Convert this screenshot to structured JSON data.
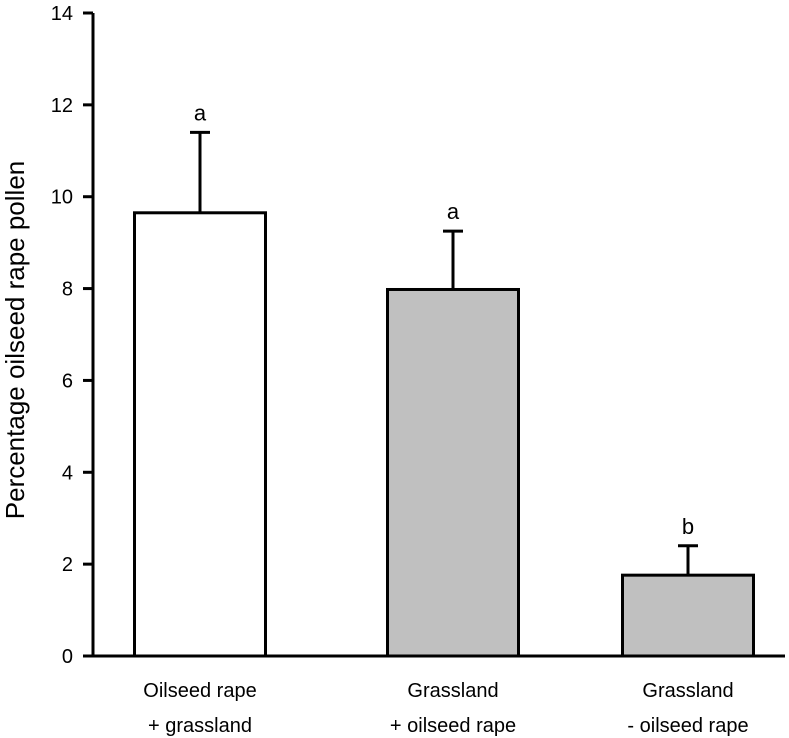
{
  "chart_data": {
    "type": "bar",
    "title": "",
    "xlabel": "",
    "ylabel": "Percentage oilseed rape pollen",
    "ylim": [
      0,
      14
    ],
    "yticks": [
      0,
      2,
      4,
      6,
      8,
      10,
      12,
      14
    ],
    "categories": [
      [
        "Oilseed rape",
        "+ grassland"
      ],
      [
        "Grassland",
        "+ oilseed rape"
      ],
      [
        "Grassland",
        "- oilseed rape"
      ]
    ],
    "values": [
      9.65,
      7.98,
      1.76
    ],
    "errors": [
      1.75,
      1.27,
      0.64
    ],
    "significance": [
      "a",
      "a",
      "b"
    ],
    "bar_colors": [
      "#ffffff",
      "#c0c0c0",
      "#c0c0c0"
    ],
    "grid": false,
    "legend": "none"
  }
}
